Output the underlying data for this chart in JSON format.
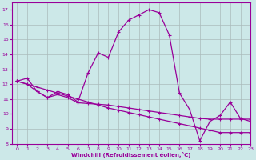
{
  "xlabel": "Windchill (Refroidissement éolien,°C)",
  "background_color": "#cce8e8",
  "line_color": "#990099",
  "grid_color": "#aabbbb",
  "x": [
    0,
    1,
    2,
    3,
    4,
    5,
    6,
    7,
    8,
    9,
    10,
    11,
    12,
    13,
    14,
    15,
    16,
    17,
    18,
    19,
    20,
    21,
    22,
    23
  ],
  "y_curve": [
    12.2,
    12.4,
    11.5,
    11.1,
    11.5,
    11.3,
    10.8,
    12.75,
    14.1,
    13.8,
    15.5,
    16.3,
    16.65,
    17.0,
    16.8,
    15.3,
    11.4,
    10.3,
    8.2,
    9.5,
    9.9,
    10.8,
    9.7,
    9.5
  ],
  "y_line1": [
    12.2,
    12.0,
    11.8,
    11.6,
    11.4,
    11.2,
    11.0,
    10.8,
    10.6,
    10.4,
    10.25,
    10.1,
    9.95,
    9.8,
    9.65,
    9.5,
    9.35,
    9.2,
    9.05,
    8.9,
    8.75,
    8.75,
    8.75,
    8.75
  ],
  "y_line2": [
    12.2,
    12.0,
    11.5,
    11.1,
    11.3,
    11.1,
    10.75,
    10.7,
    10.65,
    10.6,
    10.5,
    10.4,
    10.3,
    10.2,
    10.1,
    10.0,
    9.9,
    9.8,
    9.7,
    9.65,
    9.65,
    9.65,
    9.65,
    9.65
  ],
  "ylim": [
    8,
    17.5
  ],
  "xlim": [
    -0.5,
    23
  ],
  "yticks": [
    8,
    9,
    10,
    11,
    12,
    13,
    14,
    15,
    16,
    17
  ],
  "xticks": [
    0,
    1,
    2,
    3,
    4,
    5,
    6,
    7,
    8,
    9,
    10,
    11,
    12,
    13,
    14,
    15,
    16,
    17,
    18,
    19,
    20,
    21,
    22,
    23
  ]
}
